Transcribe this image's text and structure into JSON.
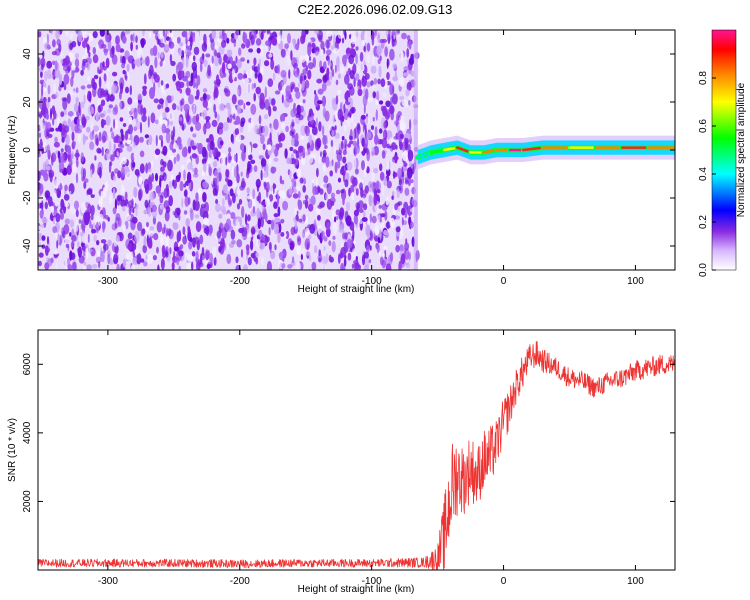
{
  "title": "C2E2.2026.096.02.09.G13",
  "chart_data": [
    {
      "type": "heatmap",
      "title": "C2E2.2026.096.02.09.G13",
      "xlabel": "Height of straight line (km)",
      "ylabel": "Frequency (Hz)",
      "xlim": [
        -353,
        130
      ],
      "ylim": [
        -50,
        50
      ],
      "xticks": [
        -300,
        -200,
        -100,
        0,
        100
      ],
      "yticks": [
        -40,
        -20,
        0,
        20,
        40
      ],
      "colorbar": {
        "label": "Normalized spectral amplitude",
        "range": [
          0.0,
          1.0
        ],
        "ticks": [
          "0.0",
          "0.2",
          "0.4",
          "0.6",
          "0.8"
        ],
        "colors": [
          "#ffffff",
          "#d8b8ff",
          "#8a2be2",
          "#0000ff",
          "#00ffff",
          "#00ff00",
          "#ffff00",
          "#ff8000",
          "#ff0000",
          "#ff1493"
        ]
      },
      "noise_region_x": [
        -353,
        -65
      ],
      "signal_track": {
        "x": [
          -65,
          -55,
          -45,
          -35,
          -25,
          -15,
          -5,
          5,
          15,
          30,
          50,
          70,
          90,
          110,
          130
        ],
        "frequency": [
          -3,
          -1,
          0,
          1,
          -1,
          -1,
          0,
          0,
          0,
          1,
          1,
          1,
          1,
          1,
          1
        ],
        "amplitude": [
          0.4,
          0.55,
          0.75,
          0.9,
          0.7,
          0.8,
          0.85,
          1.0,
          0.9,
          0.8,
          0.75,
          0.85,
          0.95,
          0.85,
          0.8
        ]
      }
    },
    {
      "type": "line",
      "xlabel": "Height of straight line (km)",
      "ylabel": "SNR (10 * v/v)",
      "xlim": [
        -353,
        130
      ],
      "ylim": [
        0,
        7000
      ],
      "xticks": [
        -300,
        -200,
        -100,
        0,
        100
      ],
      "yticks": [
        2000,
        4000,
        6000
      ],
      "series": [
        {
          "name": "SNR",
          "color": "#ee3333",
          "x": [
            -353,
            -300,
            -250,
            -200,
            -150,
            -100,
            -60,
            -50,
            -45,
            -40,
            -35,
            -30,
            -25,
            -20,
            -15,
            -10,
            -5,
            0,
            5,
            10,
            15,
            20,
            25,
            30,
            40,
            50,
            60,
            70,
            80,
            90,
            100,
            110,
            120,
            130
          ],
          "y": [
            200,
            200,
            200,
            180,
            200,
            200,
            220,
            350,
            900,
            2300,
            2800,
            2600,
            3000,
            2700,
            3200,
            3300,
            3700,
            4300,
            4800,
            5400,
            5800,
            6200,
            6300,
            6100,
            5900,
            5600,
            5500,
            5300,
            5500,
            5600,
            5800,
            5900,
            6000,
            6000
          ],
          "noise_amplitude": [
            120,
            120,
            120,
            120,
            120,
            120,
            150,
            400,
            1200,
            1400,
            1200,
            1000,
            1000,
            900,
            900,
            900,
            700,
            700,
            600,
            500,
            500,
            400,
            400,
            350,
            300,
            300,
            300,
            300,
            300,
            300,
            300,
            300,
            300,
            300
          ]
        }
      ]
    }
  ]
}
